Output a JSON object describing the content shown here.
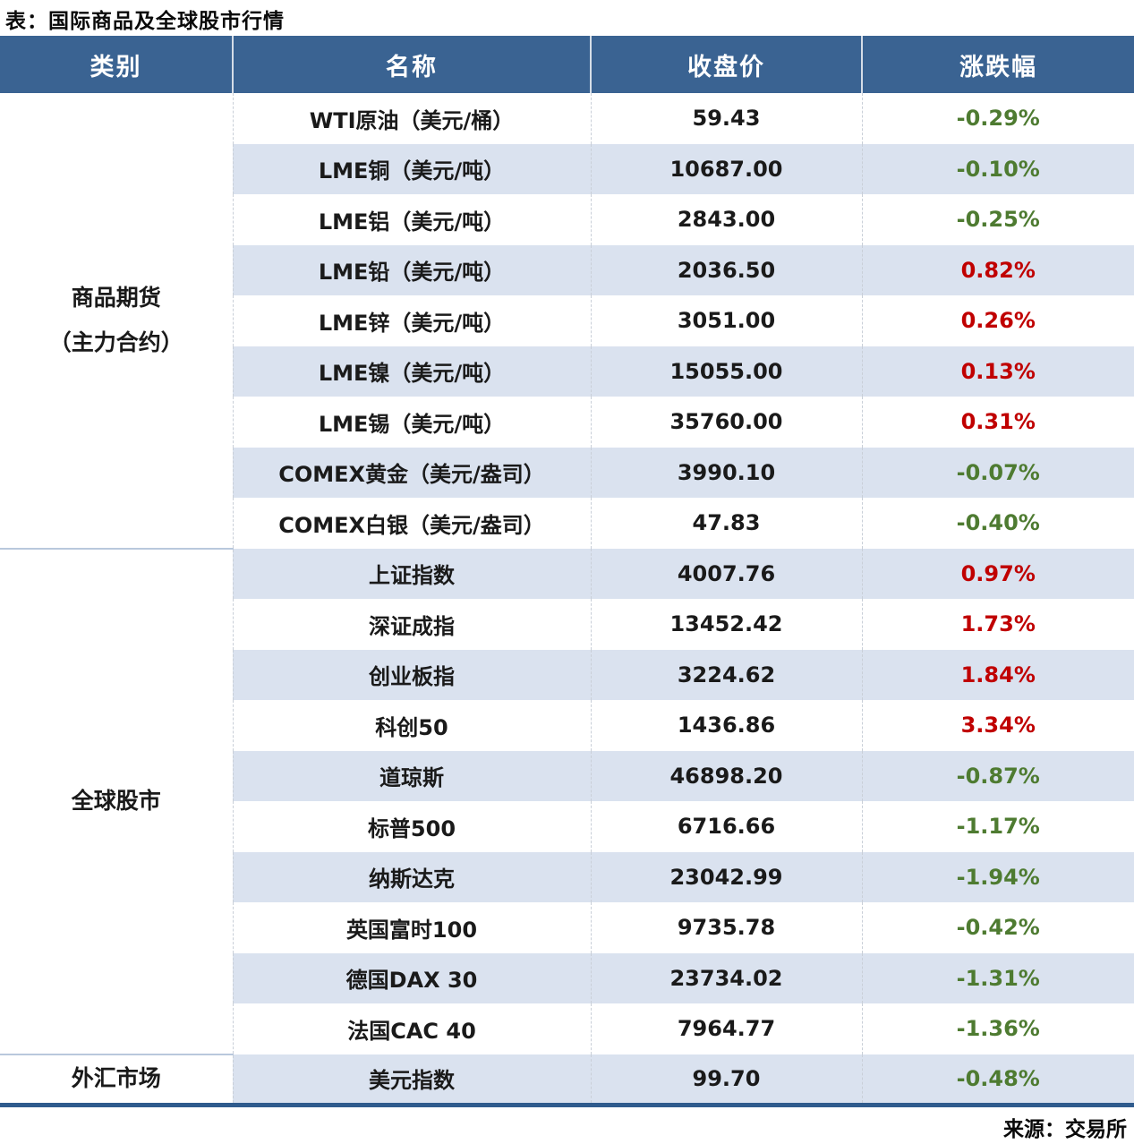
{
  "colors": {
    "header_bg": "#3A6392",
    "header_text": "#FFFFFF",
    "stripe_bg": "#DAE2EF",
    "positive_change": "#C00000",
    "negative_change": "#4E7B31",
    "bottom_border": "#2F5B8D",
    "group_divider": "#B9C8DC"
  },
  "chart_data": {
    "type": "table",
    "title": "表：国际商品及全球股市行情",
    "source": "来源：交易所",
    "columns": [
      "类别",
      "名称",
      "收盘价",
      "涨跌幅"
    ],
    "groups": [
      {
        "category": "商品期货（主力合约）",
        "category_lines": [
          "商品期货",
          "（主力合约）"
        ],
        "rows": [
          {
            "name": "WTI原油（美元/桶）",
            "close": "59.43",
            "change": "-0.29%"
          },
          {
            "name": "LME铜（美元/吨）",
            "close": "10687.00",
            "change": "-0.10%"
          },
          {
            "name": "LME铝（美元/吨）",
            "close": "2843.00",
            "change": "-0.25%"
          },
          {
            "name": "LME铅（美元/吨）",
            "close": "2036.50",
            "change": "0.82%"
          },
          {
            "name": "LME锌（美元/吨）",
            "close": "3051.00",
            "change": "0.26%"
          },
          {
            "name": "LME镍（美元/吨）",
            "close": "15055.00",
            "change": "0.13%"
          },
          {
            "name": "LME锡（美元/吨）",
            "close": "35760.00",
            "change": "0.31%"
          },
          {
            "name": "COMEX黄金（美元/盎司）",
            "close": "3990.10",
            "change": "-0.07%"
          },
          {
            "name": "COMEX白银（美元/盎司）",
            "close": "47.83",
            "change": "-0.40%"
          }
        ]
      },
      {
        "category": "全球股市",
        "category_lines": [
          "全球股市"
        ],
        "rows": [
          {
            "name": "上证指数",
            "close": "4007.76",
            "change": "0.97%"
          },
          {
            "name": "深证成指",
            "close": "13452.42",
            "change": "1.73%"
          },
          {
            "name": "创业板指",
            "close": "3224.62",
            "change": "1.84%"
          },
          {
            "name": "科创50",
            "close": "1436.86",
            "change": "3.34%"
          },
          {
            "name": "道琼斯",
            "close": "46898.20",
            "change": "-0.87%"
          },
          {
            "name": "标普500",
            "close": "6716.66",
            "change": "-1.17%"
          },
          {
            "name": "纳斯达克",
            "close": "23042.99",
            "change": "-1.94%"
          },
          {
            "name": "英国富时100",
            "close": "9735.78",
            "change": "-0.42%"
          },
          {
            "name": "德国DAX 30",
            "close": "23734.02",
            "change": "-1.31%"
          },
          {
            "name": "法国CAC 40",
            "close": "7964.77",
            "change": "-1.36%"
          }
        ]
      },
      {
        "category": "外汇市场",
        "category_lines": [
          "外汇市场"
        ],
        "rows": [
          {
            "name": "美元指数",
            "close": "99.70",
            "change": "-0.48%"
          }
        ]
      }
    ]
  }
}
